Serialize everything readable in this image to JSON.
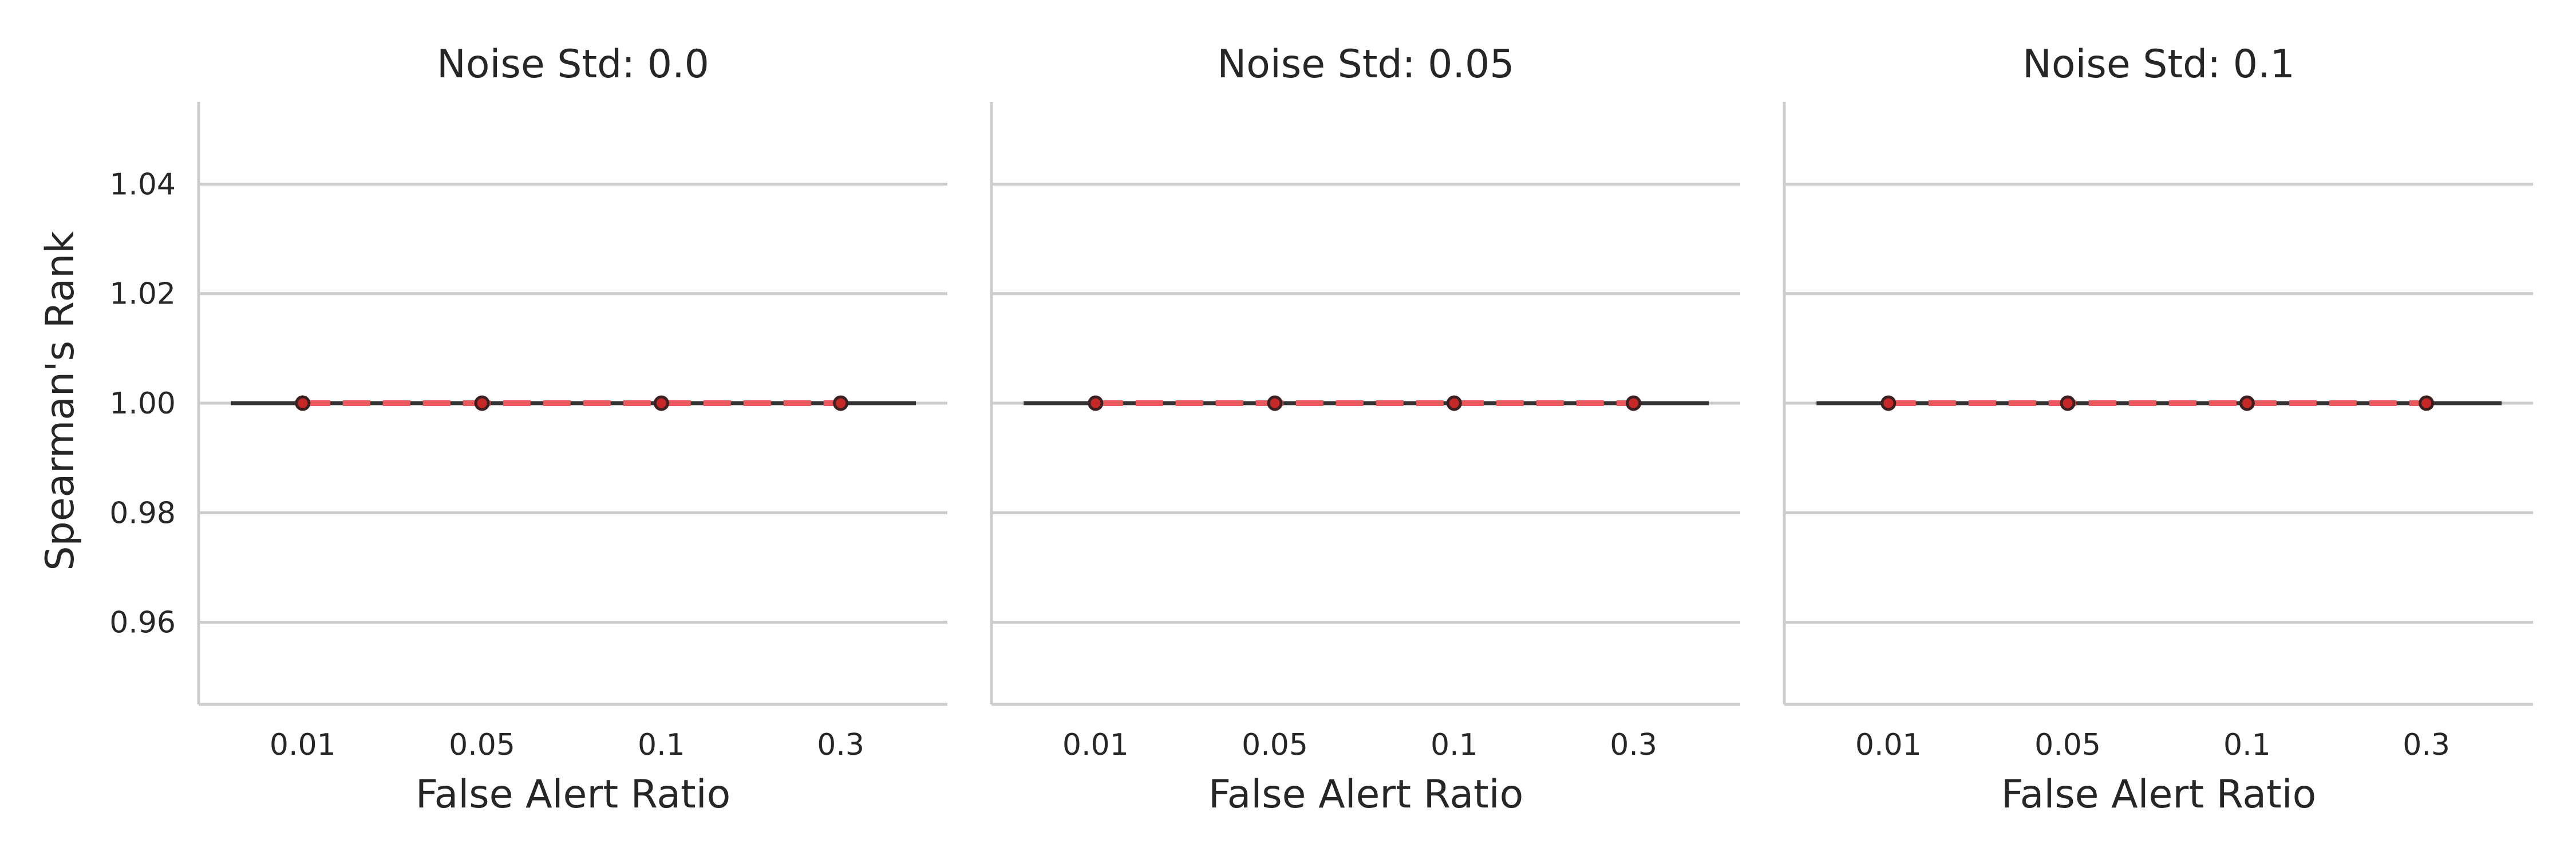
{
  "chart_data": {
    "type": "line",
    "ylabel": "Spearman's Rank",
    "xlabel": "False Alert Ratio",
    "categories": [
      "0.01",
      "0.05",
      "0.1",
      "0.3"
    ],
    "ylim": [
      0.945,
      1.055
    ],
    "yticks": [
      0.96,
      0.98,
      1.0,
      1.02,
      1.04
    ],
    "ytick_labels": [
      "0.96",
      "0.98",
      "1.00",
      "1.02",
      "1.04"
    ],
    "grid": "horizontal",
    "colors": {
      "mean_line": "#e8585c",
      "band": "#333333",
      "marker_fill": "#c62828",
      "marker_edge": "#3a2020"
    },
    "panels": [
      {
        "title": "Noise Std: 0.0",
        "values": [
          1.0,
          1.0,
          1.0,
          1.0
        ]
      },
      {
        "title": "Noise Std: 0.05",
        "values": [
          1.0,
          1.0,
          1.0,
          1.0
        ]
      },
      {
        "title": "Noise Std: 0.1",
        "values": [
          1.0,
          1.0,
          1.0,
          1.0
        ]
      }
    ]
  }
}
